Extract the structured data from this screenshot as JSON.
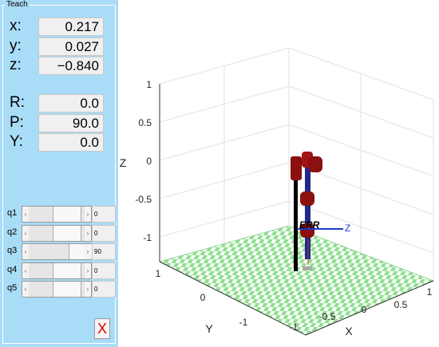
{
  "panel": {
    "title": "Teach",
    "position": [
      {
        "label": "x:",
        "value": "0.217"
      },
      {
        "label": "y:",
        "value": "0.027"
      },
      {
        "label": "z:",
        "value": "−0.840"
      }
    ],
    "orientation": [
      {
        "label": "R:",
        "value": "0.0"
      },
      {
        "label": "P:",
        "value": "90.0"
      },
      {
        "label": "Y:",
        "value": "0.0"
      }
    ],
    "joints": [
      {
        "label": "q1",
        "value": "0"
      },
      {
        "label": "q2",
        "value": "0"
      },
      {
        "label": "q3",
        "value": "90"
      },
      {
        "label": "q4",
        "value": "0"
      },
      {
        "label": "q5",
        "value": "0"
      }
    ],
    "close": "X"
  },
  "plot": {
    "z_label": "Z",
    "x_label": "X",
    "y_label": "Y",
    "z_ticks": [
      "1",
      "0.5",
      "0",
      "-0.5",
      "-1"
    ],
    "x_ticks": [
      "-1",
      "-0.5",
      "0",
      "0.5",
      "1"
    ],
    "y_ticks": [
      "1",
      "0",
      "-1"
    ],
    "robot_name": "ERR",
    "frame_z": "Z"
  }
}
